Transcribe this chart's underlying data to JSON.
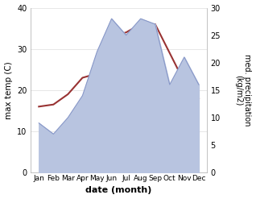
{
  "months": [
    "Jan",
    "Feb",
    "Mar",
    "Apr",
    "May",
    "Jun",
    "Jul",
    "Aug",
    "Sep",
    "Oct",
    "Nov",
    "Dec"
  ],
  "temp": [
    16,
    16.5,
    19,
    23,
    24,
    33,
    34,
    36,
    36,
    29,
    22,
    18
  ],
  "precip": [
    9,
    7,
    10,
    14,
    22,
    28,
    25,
    28,
    27,
    16,
    21,
    16
  ],
  "temp_color": "#993333",
  "precip_fill_color": "#b8c4e0",
  "precip_edge_color": "#8898c8",
  "xlabel": "date (month)",
  "ylabel_left": "max temp (C)",
  "ylabel_right": "med. precipitation\n(kg/m2)",
  "ylim_left": [
    0,
    40
  ],
  "ylim_right": [
    0,
    30
  ],
  "yticks_left": [
    0,
    10,
    20,
    30,
    40
  ],
  "yticks_right": [
    0,
    5,
    10,
    15,
    20,
    25,
    30
  ],
  "background_color": "#ffffff"
}
